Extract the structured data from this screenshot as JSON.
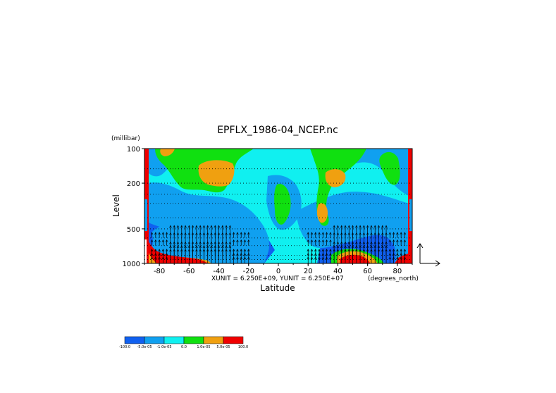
{
  "chart_data": {
    "type": "heatmap",
    "title": "EPFLX_1986-04_NCEP.nc",
    "xlabel": "Latitude",
    "ylabel": "Level",
    "y_unit": "(millibar)",
    "x_unit": "(degrees_north)",
    "vector_scale": "XUNIT = 6.250E+09, YUNIT = 6.250E+07",
    "xlim": [
      -90,
      90
    ],
    "ylim": [
      1000,
      100
    ],
    "y_scale": "log",
    "x_ticks": [
      -80,
      -60,
      -40,
      -20,
      0,
      20,
      40,
      60,
      80
    ],
    "x_tick_labels": [
      "-80",
      "-60",
      "-40",
      "-20",
      "0",
      "20",
      "40",
      "60",
      "80"
    ],
    "y_ticks": [
      100,
      200,
      500,
      1000
    ],
    "y_tick_labels": [
      "100",
      "200",
      "500",
      "1000"
    ],
    "grid": "dotted horizontal lines at pressure levels",
    "colorbar": {
      "colors": [
        "#1060f0",
        "#10a0f0",
        "#10f0f0",
        "#10e010",
        "#f0a010",
        "#f00000"
      ],
      "labels": [
        "-100.0",
        "-5.0e-05",
        "-1.0e-05",
        "0.0",
        "1.0e-05",
        "5.0e-05",
        "100.0"
      ]
    },
    "vectors": "EP flux arrows concentrated in lower troposphere (below ~600 mb) at mid-latitudes"
  }
}
